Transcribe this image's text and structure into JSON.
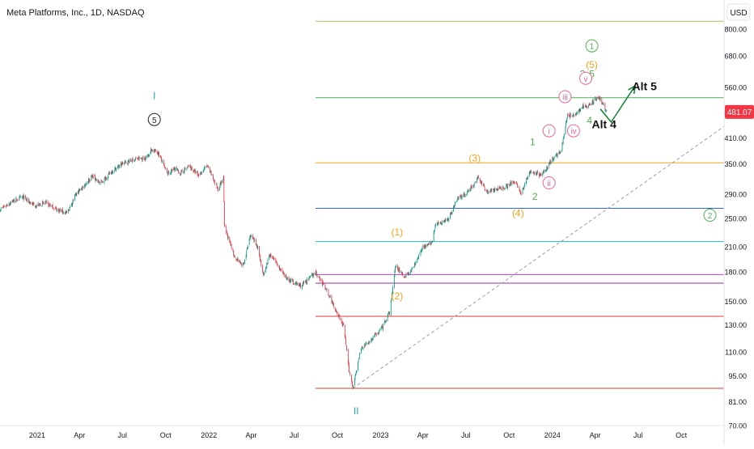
{
  "header": {
    "symbol_title": "Meta Platforms, Inc., 1D, NASDAQ",
    "currency_button": "USD"
  },
  "price_badge": {
    "value": "481.07",
    "color": "#f23645"
  },
  "chart_data": {
    "type": "candlestick",
    "scale": "log",
    "ylim": [
      70,
      920
    ],
    "yticks": [
      800,
      680,
      560,
      480,
      410,
      350,
      290,
      250,
      210,
      180,
      150,
      130,
      110,
      95,
      81,
      70
    ],
    "ytick_labels": [
      "800.00",
      "680.00",
      "560.00",
      "480.00",
      "410.00",
      "350.00",
      "290.00",
      "250.00",
      "210.00",
      "180.00",
      "150.00",
      "130.00",
      "110.00",
      "95.00",
      "81.00",
      "70.00"
    ],
    "xlim": [
      "2020-10-14",
      "2024-12-31"
    ],
    "xticks": [
      {
        "date": "2021-01-01",
        "label": "2021"
      },
      {
        "date": "2021-04-01",
        "label": "Apr"
      },
      {
        "date": "2021-07-01",
        "label": "Jul"
      },
      {
        "date": "2021-10-01",
        "label": "Oct"
      },
      {
        "date": "2022-01-01",
        "label": "2022"
      },
      {
        "date": "2022-04-01",
        "label": "Apr"
      },
      {
        "date": "2022-07-01",
        "label": "Jul"
      },
      {
        "date": "2022-10-01",
        "label": "Oct"
      },
      {
        "date": "2023-01-01",
        "label": "2023"
      },
      {
        "date": "2023-04-01",
        "label": "Apr"
      },
      {
        "date": "2023-07-01",
        "label": "Jul"
      },
      {
        "date": "2023-10-01",
        "label": "Oct"
      },
      {
        "date": "2024-01-01",
        "label": "2024"
      },
      {
        "date": "2024-04-01",
        "label": "Apr"
      },
      {
        "date": "2024-07-01",
        "label": "Jul"
      },
      {
        "date": "2024-10-01",
        "label": "Oct"
      }
    ],
    "price_path": [
      [
        "2020-10-14",
        264
      ],
      [
        "2020-11-10",
        278
      ],
      [
        "2020-12-01",
        285
      ],
      [
        "2020-12-28",
        270
      ],
      [
        "2021-01-20",
        275
      ],
      [
        "2021-02-10",
        265
      ],
      [
        "2021-03-05",
        258
      ],
      [
        "2021-03-25",
        290
      ],
      [
        "2021-04-29",
        325
      ],
      [
        "2021-05-15",
        310
      ],
      [
        "2021-06-10",
        335
      ],
      [
        "2021-07-01",
        350
      ],
      [
        "2021-07-28",
        360
      ],
      [
        "2021-08-20",
        362
      ],
      [
        "2021-09-01",
        382
      ],
      [
        "2021-09-15",
        375
      ],
      [
        "2021-10-05",
        328
      ],
      [
        "2021-10-20",
        340
      ],
      [
        "2021-11-01",
        330
      ],
      [
        "2021-11-20",
        345
      ],
      [
        "2021-12-10",
        325
      ],
      [
        "2021-12-28",
        346
      ],
      [
        "2022-01-20",
        300
      ],
      [
        "2022-02-01",
        320
      ],
      [
        "2022-02-03",
        238
      ],
      [
        "2022-02-24",
        198
      ],
      [
        "2022-03-15",
        187
      ],
      [
        "2022-03-30",
        225
      ],
      [
        "2022-04-15",
        210
      ],
      [
        "2022-04-27",
        175
      ],
      [
        "2022-05-10",
        200
      ],
      [
        "2022-05-25",
        190
      ],
      [
        "2022-06-10",
        175
      ],
      [
        "2022-06-25",
        170
      ],
      [
        "2022-07-15",
        165
      ],
      [
        "2022-08-01",
        172
      ],
      [
        "2022-08-15",
        180
      ],
      [
        "2022-09-10",
        160
      ],
      [
        "2022-09-25",
        145
      ],
      [
        "2022-10-15",
        128
      ],
      [
        "2022-10-26",
        98
      ],
      [
        "2022-11-03",
        89
      ],
      [
        "2022-11-20",
        112
      ],
      [
        "2022-12-10",
        118
      ],
      [
        "2023-01-05",
        128
      ],
      [
        "2023-01-20",
        140
      ],
      [
        "2023-02-02",
        187
      ],
      [
        "2023-02-20",
        175
      ],
      [
        "2023-03-10",
        183
      ],
      [
        "2023-03-31",
        210
      ],
      [
        "2023-04-20",
        215
      ],
      [
        "2023-04-27",
        240
      ],
      [
        "2023-05-25",
        250
      ],
      [
        "2023-06-15",
        285
      ],
      [
        "2023-07-01",
        290
      ],
      [
        "2023-07-28",
        320
      ],
      [
        "2023-08-15",
        295
      ],
      [
        "2023-09-10",
        300
      ],
      [
        "2023-09-25",
        305
      ],
      [
        "2023-10-15",
        315
      ],
      [
        "2023-10-26",
        290
      ],
      [
        "2023-11-15",
        335
      ],
      [
        "2023-12-10",
        325
      ],
      [
        "2023-12-28",
        355
      ],
      [
        "2024-01-20",
        380
      ],
      [
        "2024-02-02",
        470
      ],
      [
        "2024-02-20",
        470
      ],
      [
        "2024-03-05",
        500
      ],
      [
        "2024-03-15",
        495
      ],
      [
        "2024-04-05",
        525
      ],
      [
        "2024-04-15",
        515
      ],
      [
        "2024-04-25",
        481.07
      ]
    ],
    "horizontal_levels": [
      {
        "price": 840,
        "color": "#9ec553"
      },
      {
        "price": 525,
        "color": "#4caf50"
      },
      {
        "price": 352,
        "color": "#f7a21b"
      },
      {
        "price": 266,
        "color": "#2962ff"
      },
      {
        "price": 217,
        "color": "#26c6da"
      },
      {
        "price": 177,
        "color": "#e040fb"
      },
      {
        "price": 168,
        "color": "#9c27b0"
      },
      {
        "price": 137,
        "color": "#e53935"
      },
      {
        "price": 88,
        "color": "#e53935"
      }
    ],
    "trendline": {
      "from": [
        "2022-11-03",
        88
      ],
      "to": [
        "2024-12-31",
        440
      ],
      "color": "#9e9e9e",
      "dashed": true
    },
    "wave_labels": [
      {
        "text": "I",
        "date": "2021-09-07",
        "price": 520,
        "color": "#26a69a",
        "circled": false
      },
      {
        "text": "5",
        "date": "2021-09-07",
        "price": 450,
        "color": "#222222",
        "circled": true
      },
      {
        "text": "II",
        "date": "2022-11-10",
        "price": 75,
        "color": "#26a69a",
        "circled": false
      },
      {
        "text": "(1)",
        "date": "2023-02-05",
        "price": 225,
        "color": "#f7a21b",
        "circled": false
      },
      {
        "text": "(2)",
        "date": "2023-02-05",
        "price": 152,
        "color": "#f7a21b",
        "circled": false
      },
      {
        "text": "(3)",
        "date": "2023-07-20",
        "price": 355,
        "color": "#f7a21b",
        "circled": false
      },
      {
        "text": "(4)",
        "date": "2023-10-20",
        "price": 253,
        "color": "#f7a21b",
        "circled": false
      },
      {
        "text": "(5)",
        "date": "2024-03-25",
        "price": 630,
        "color": "#f7a21b",
        "circled": false
      },
      {
        "text": "1",
        "date": "2023-11-20",
        "price": 392,
        "color": "#4caf50",
        "circled": false
      },
      {
        "text": "2",
        "date": "2023-11-25",
        "price": 280,
        "color": "#4caf50",
        "circled": false
      },
      {
        "text": "3",
        "date": "2024-03-05",
        "price": 595,
        "color": "#4caf50",
        "circled": false
      },
      {
        "text": "4",
        "date": "2024-03-20",
        "price": 447,
        "color": "#4caf50",
        "circled": false
      },
      {
        "text": "5",
        "date": "2024-03-25",
        "price": 595,
        "color": "#4caf50",
        "circled": false
      },
      {
        "text": "1",
        "date": "2024-03-25",
        "price": 708,
        "color": "#4caf50",
        "circled": true
      },
      {
        "text": "2",
        "date": "2024-12-01",
        "price": 250,
        "color": "#4caf50",
        "circled": true
      },
      {
        "text": "i",
        "date": "2023-12-25",
        "price": 420,
        "color": "#f06292",
        "circled": true
      },
      {
        "text": "ii",
        "date": "2023-12-25",
        "price": 305,
        "color": "#f06292",
        "circled": true
      },
      {
        "text": "iii",
        "date": "2024-01-28",
        "price": 518,
        "color": "#f06292",
        "circled": true
      },
      {
        "text": "iv",
        "date": "2024-02-15",
        "price": 420,
        "color": "#f06292",
        "circled": true
      },
      {
        "text": "v",
        "date": "2024-03-12",
        "price": 580,
        "color": "#f06292",
        "circled": true
      },
      {
        "text": "Alt 5",
        "date": "2024-07-15",
        "price": 550,
        "color": "#111111",
        "circled": false
      },
      {
        "text": "Alt 4",
        "date": "2024-04-20",
        "price": 435,
        "color": "#111111",
        "circled": false
      }
    ],
    "projection": {
      "color": "#1b8a3e",
      "points": [
        [
          "2024-04-12",
          490
        ],
        [
          "2024-05-05",
          452
        ],
        [
          "2024-06-25",
          565
        ]
      ]
    }
  }
}
